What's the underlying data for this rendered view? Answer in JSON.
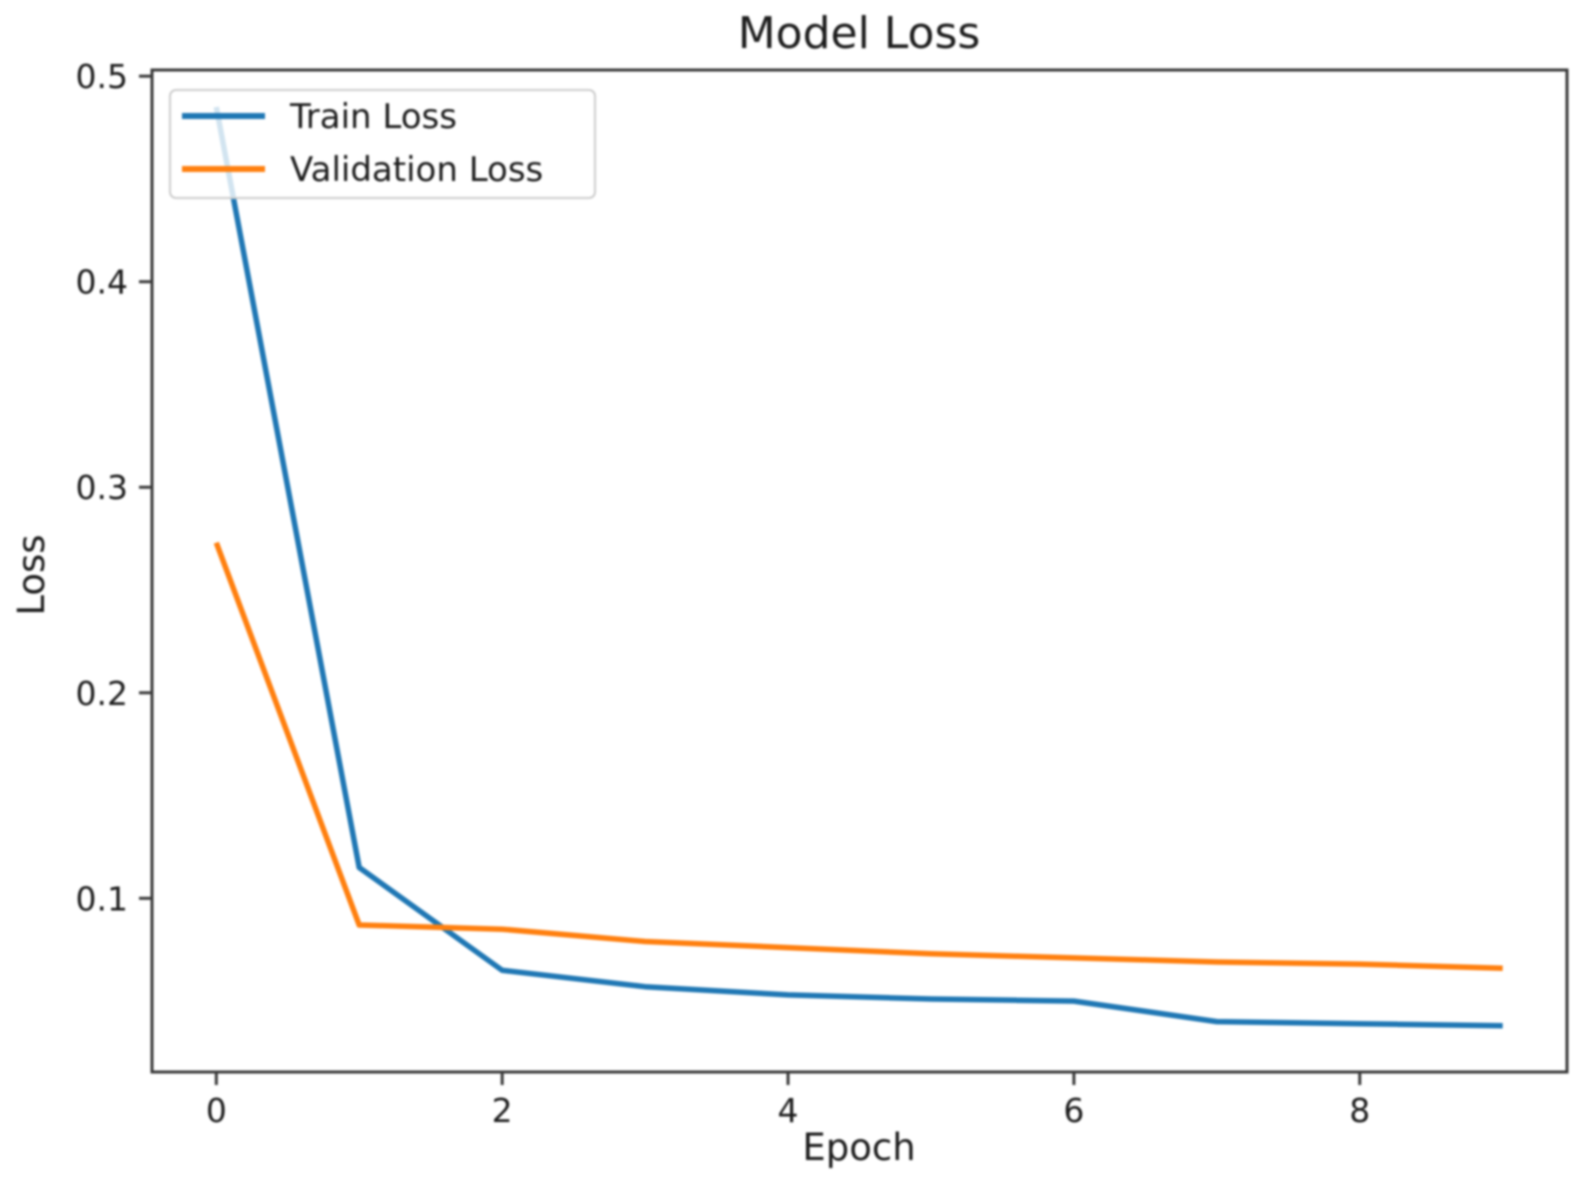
{
  "chart_data": {
    "type": "line",
    "title": "Model Loss",
    "xlabel": "Epoch",
    "ylabel": "Loss",
    "x": [
      0,
      1,
      2,
      3,
      4,
      5,
      6,
      7,
      8,
      9
    ],
    "series": [
      {
        "name": "Train Loss",
        "color": "#1f77b4",
        "values": [
          0.485,
          0.115,
          0.065,
          0.057,
          0.053,
          0.051,
          0.05,
          0.04,
          0.039,
          0.038
        ]
      },
      {
        "name": "Validation Loss",
        "color": "#ff7f0e",
        "values": [
          0.273,
          0.087,
          0.085,
          0.079,
          0.076,
          0.073,
          0.071,
          0.069,
          0.068,
          0.066
        ]
      }
    ],
    "xticks": {
      "values": [
        0,
        2,
        4,
        6,
        8
      ],
      "labels": [
        "0",
        "2",
        "4",
        "6",
        "8"
      ]
    },
    "yticks": {
      "values": [
        0.1,
        0.2,
        0.3,
        0.4,
        0.5
      ],
      "labels": [
        "0.1",
        "0.2",
        "0.3",
        "0.4",
        "0.5"
      ]
    },
    "xlim": [
      -0.45,
      9.45
    ],
    "ylim": [
      0.0155,
      0.503
    ],
    "grid": false,
    "legend": {
      "position": "upper left",
      "entries": [
        "Train Loss",
        "Validation Loss"
      ],
      "frame_alpha": 0.8
    },
    "colors": {
      "axes": "#3a3a3a",
      "text": "#1c1c1c",
      "legend_border": "#cccccc",
      "background": "#ffffff"
    }
  }
}
